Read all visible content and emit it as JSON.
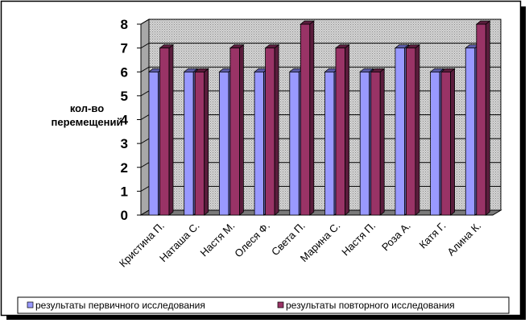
{
  "chart_data": {
    "type": "bar",
    "ylabel": "кол-во перемещений",
    "ylabel_lines": [
      "кол-во",
      "перемещений"
    ],
    "categories": [
      "Кристина П.",
      "Наташа С.",
      "Настя М.",
      "Олеся Ф.",
      "Света П.",
      "Марина С.",
      "Настя П.",
      "Роза А.",
      "Катя Г.",
      "Алина К."
    ],
    "series": [
      {
        "name": "результаты первичного исследования",
        "values": [
          6,
          6,
          6,
          6,
          6,
          6,
          6,
          7,
          6,
          7
        ],
        "color": "#9999ff",
        "side_color": "#5c5ca8"
      },
      {
        "name": "результаты повторного исследования",
        "values": [
          7,
          6,
          7,
          7,
          8,
          7,
          6,
          7,
          6,
          8
        ],
        "color": "#993366",
        "side_color": "#5a1c3c"
      }
    ],
    "ylim": [
      0,
      8
    ],
    "yticks": [
      0,
      1,
      2,
      3,
      4,
      5,
      6,
      7,
      8
    ],
    "grid": true,
    "legend_position": "bottom",
    "three_d": true
  }
}
